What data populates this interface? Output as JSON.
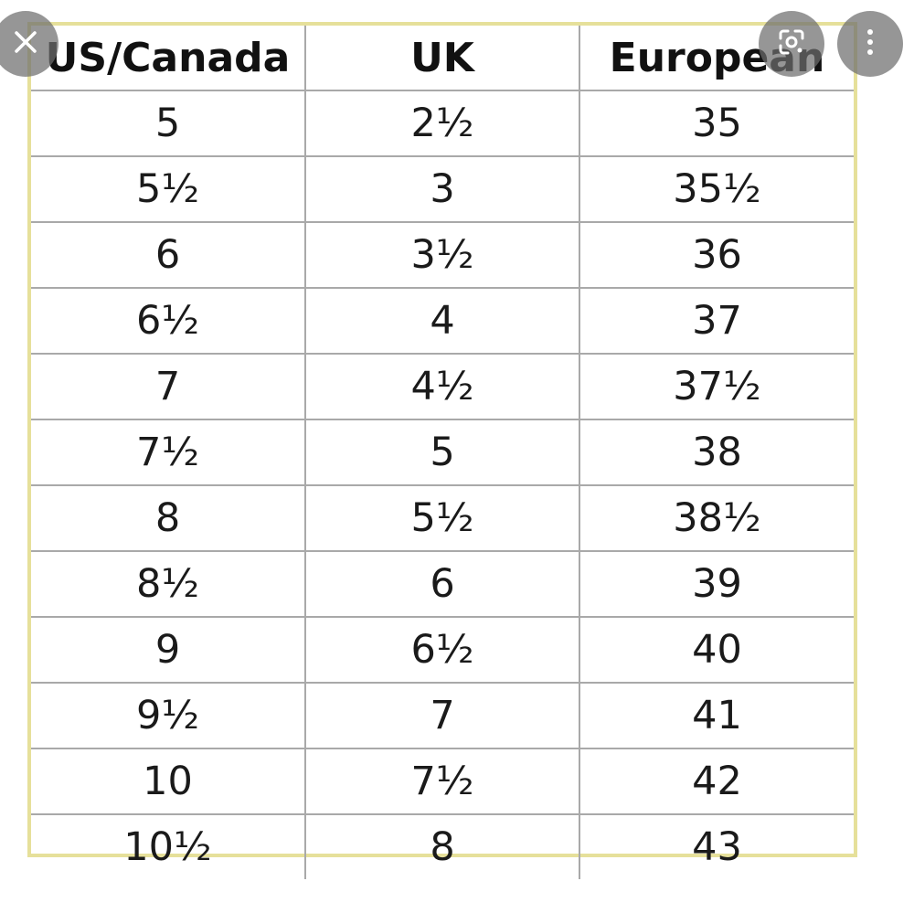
{
  "table": {
    "headers": [
      "US/Canada",
      "UK",
      "European"
    ],
    "rows": [
      [
        "5",
        "2½",
        "35"
      ],
      [
        "5½",
        "3",
        "35½"
      ],
      [
        "6",
        "3½",
        "36"
      ],
      [
        "6½",
        "4",
        "37"
      ],
      [
        "7",
        "4½",
        "37½"
      ],
      [
        "7½",
        "5",
        "38"
      ],
      [
        "8",
        "5½",
        "38½"
      ],
      [
        "8½",
        "6",
        "39"
      ],
      [
        "9",
        "6½",
        "40"
      ],
      [
        "9½",
        "7",
        "41"
      ],
      [
        "10",
        "7½",
        "42"
      ],
      [
        "10½",
        "8",
        "43"
      ]
    ]
  },
  "overlay": {
    "close_icon": "close-icon",
    "lens_icon": "lens-icon",
    "more_icon": "more-vertical-icon"
  },
  "colors": {
    "frame_border": "#e6e09a",
    "grid_lines": "#a9a9a9",
    "overlay_button": "#6e6e6e"
  }
}
